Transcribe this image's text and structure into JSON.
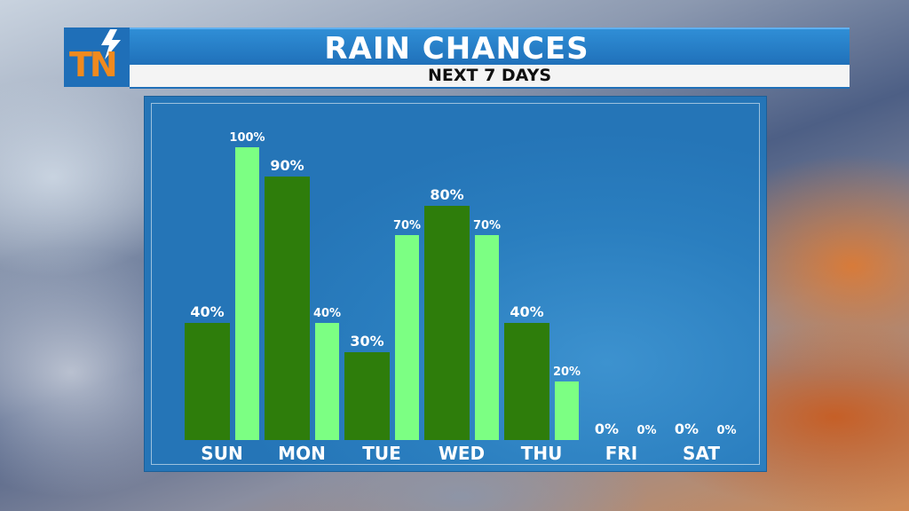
{
  "header": {
    "title": "RAIN CHANCES",
    "subtitle": "NEXT 7 DAYS",
    "logo_text": "TN"
  },
  "colors": {
    "day_bar": "#2e7d0b",
    "night_bar": "#7cff83",
    "panel": "#2a7ebf",
    "header": "#1f6fb8",
    "logo_orange": "#f08a1e"
  },
  "chart_data": {
    "type": "bar",
    "title": "RAIN CHANCES",
    "subtitle": "NEXT 7 DAYS",
    "categories": [
      "SUN",
      "MON",
      "TUE",
      "WED",
      "THU",
      "FRI",
      "SAT"
    ],
    "series": [
      {
        "values": [
          40,
          90,
          30,
          80,
          40,
          0,
          0
        ],
        "labels": [
          "40%",
          "90%",
          "30%",
          "80%",
          "40%",
          "0%",
          "0%"
        ]
      },
      {
        "values": [
          100,
          40,
          70,
          70,
          20,
          0,
          0
        ],
        "labels": [
          "100%",
          "40%",
          "70%",
          "70%",
          "20%",
          "0%",
          "0%"
        ]
      }
    ],
    "ylim": [
      0,
      100
    ],
    "grid": false,
    "legend": "none"
  }
}
